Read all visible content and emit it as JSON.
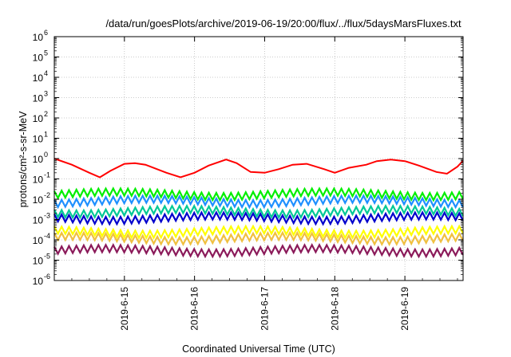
{
  "chart_data": {
    "type": "line",
    "title": "/data/run/goesPlots/archive/2019-06-19/20:00/flux/../flux/5daysMarsFluxes.txt",
    "xlabel": "Coordinated Universal Time (UTC)",
    "ylabel": "protons/cm²-s-sr-MeV",
    "yscale": "log",
    "ylim": [
      1e-06,
      1000000.0
    ],
    "xlim": [
      0,
      5.83
    ],
    "x_units": "days since 2019-06-14 00:00 UTC",
    "y_ticks": [
      {
        "base": "10",
        "exp": "-6",
        "value": 1e-06
      },
      {
        "base": "10",
        "exp": "-5",
        "value": 1e-05
      },
      {
        "base": "10",
        "exp": "-4",
        "value": 0.0001
      },
      {
        "base": "10",
        "exp": "-3",
        "value": 0.001
      },
      {
        "base": "10",
        "exp": "-2",
        "value": 0.01
      },
      {
        "base": "10",
        "exp": "-1",
        "value": 0.1
      },
      {
        "base": "10",
        "exp": "0",
        "value": 1
      },
      {
        "base": "10",
        "exp": "1",
        "value": 10
      },
      {
        "base": "10",
        "exp": "2",
        "value": 100
      },
      {
        "base": "10",
        "exp": "3",
        "value": 1000
      },
      {
        "base": "10",
        "exp": "4",
        "value": 10000
      },
      {
        "base": "10",
        "exp": "5",
        "value": 100000
      },
      {
        "base": "10",
        "exp": "6",
        "value": 1000000
      }
    ],
    "x_ticks": [
      {
        "label": "2019-6-15",
        "value": 1
      },
      {
        "label": "2019-6-16",
        "value": 2
      },
      {
        "label": "2019-6-17",
        "value": 3
      },
      {
        "label": "2019-6-18",
        "value": 4
      },
      {
        "label": "2019-6-19",
        "value": 5
      }
    ],
    "grid": true,
    "legend": "none",
    "series": [
      {
        "color": "#ff0000",
        "x": [
          0,
          0.25,
          0.5,
          0.65,
          0.8,
          1.0,
          1.15,
          1.3,
          1.6,
          1.8,
          2.0,
          2.2,
          2.45,
          2.6,
          2.8,
          3.0,
          3.2,
          3.4,
          3.6,
          3.85,
          4.0,
          4.2,
          4.45,
          4.6,
          4.8,
          5.0,
          5.2,
          5.45,
          5.6,
          5.75,
          5.83
        ],
        "y": [
          1.0,
          0.5,
          0.2,
          0.12,
          0.25,
          0.55,
          0.6,
          0.5,
          0.2,
          0.12,
          0.2,
          0.45,
          0.9,
          0.6,
          0.22,
          0.2,
          0.3,
          0.5,
          0.55,
          0.3,
          0.2,
          0.35,
          0.5,
          0.75,
          0.9,
          0.75,
          0.45,
          0.22,
          0.18,
          0.4,
          0.8
        ]
      },
      {
        "color": "#00ee00",
        "avg": 0.018
      },
      {
        "color": "#1e90ff",
        "avg": 0.008
      },
      {
        "color": "#00c896",
        "avg": 0.0025
      },
      {
        "color": "#0000cc",
        "avg": 0.0012
      },
      {
        "color": "#ffff00",
        "avg": 0.00025
      },
      {
        "color": "#f0c040",
        "avg": 0.00012
      },
      {
        "color": "#8b1a5a",
        "avg": 3e-05
      }
    ]
  }
}
